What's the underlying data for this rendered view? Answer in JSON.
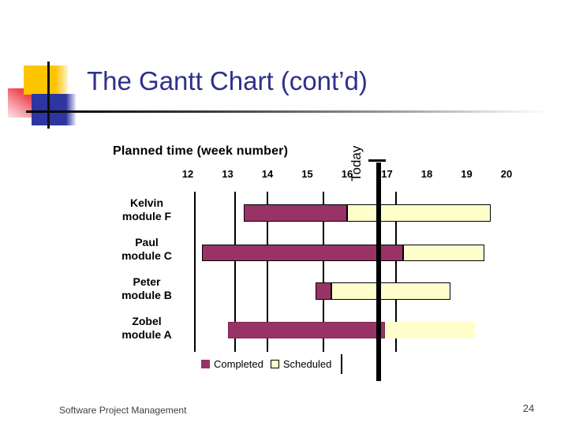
{
  "slide": {
    "title": "The Gantt Chart (cont’d)",
    "footer": "Software Project Management",
    "page_number": "24"
  },
  "chart_data": {
    "type": "bar",
    "subtype": "gantt",
    "title": "Planned time (week number)",
    "today_label": "Today",
    "today_week": 16.8,
    "xlim": [
      11.8,
      20.4
    ],
    "week_ticks": [
      "12",
      "13",
      "14",
      "15",
      "16",
      "17",
      "18",
      "19",
      "20"
    ],
    "legend": [
      {
        "label": "Completed",
        "color": "#993366",
        "outlined": false
      },
      {
        "label": "Scheduled",
        "color": "#FFFFCC",
        "outlined": true
      }
    ],
    "rows": [
      {
        "person": "Kelvin",
        "module": "module F",
        "completed": [
          13.4,
          16.0
        ],
        "scheduled": [
          16.0,
          19.6
        ],
        "outlined": true
      },
      {
        "person": "Paul",
        "module": "module C",
        "completed": [
          12.35,
          17.4
        ],
        "scheduled": [
          17.4,
          19.45
        ],
        "outlined": true
      },
      {
        "person": "Peter",
        "module": "module B",
        "completed": [
          15.2,
          15.6
        ],
        "scheduled": [
          15.6,
          18.6
        ],
        "outlined": true
      },
      {
        "person": "Zobel",
        "module": "module A",
        "completed": [
          13.0,
          16.95
        ],
        "scheduled": [
          16.95,
          19.2
        ],
        "outlined": false
      }
    ]
  },
  "colors": {
    "completed_maroon": "#993366",
    "scheduled_yellow": "#FFFFCC",
    "title_navy": "#30308C",
    "line_black": "#000000"
  }
}
